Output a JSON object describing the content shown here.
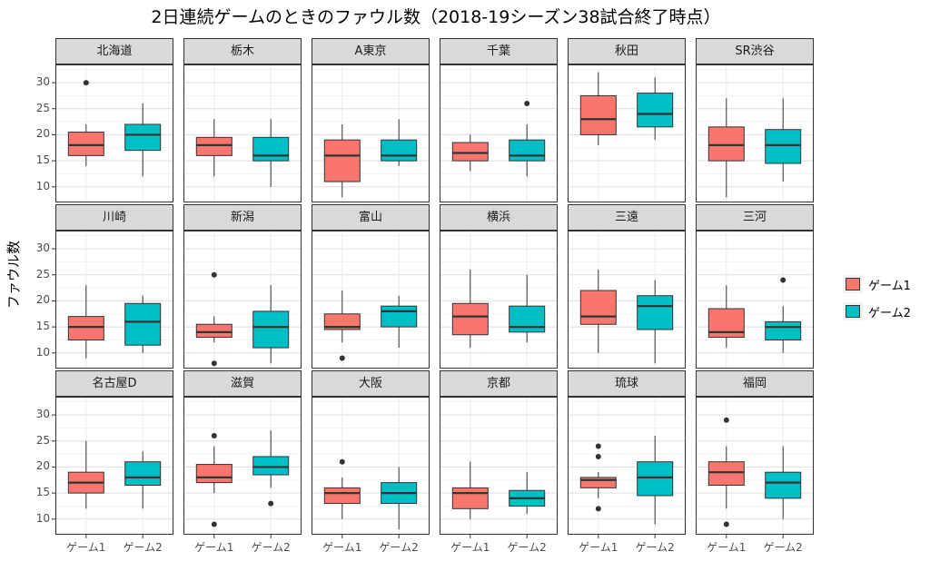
{
  "title": "2日連続ゲームのときのファウル数（2018-19シーズン38試合終了時点）",
  "ylabel": "ファウル数",
  "legend": {
    "items": [
      "ゲーム1",
      "ゲーム2"
    ]
  },
  "chart_data": {
    "type": "boxplot-facets",
    "title": "2日連続ゲームのときのファウル数（2018-19シーズン38試合終了時点）",
    "ylabel": "ファウル数",
    "xlabel": "",
    "categories": [
      "ゲーム1",
      "ゲーム2"
    ],
    "series_colors": {
      "ゲーム1": "#f8766d",
      "ゲーム2": "#00bfc4"
    },
    "ylim": [
      7,
      33.5
    ],
    "yticks": [
      10,
      15,
      20,
      25,
      30
    ],
    "legend_position": "right",
    "grid": true,
    "facets": [
      {
        "name": "北海道",
        "g1": {
          "min": 14,
          "q1": 16,
          "med": 18,
          "q3": 20.5,
          "max": 22,
          "out": [
            30
          ]
        },
        "g2": {
          "min": 12,
          "q1": 17,
          "med": 20,
          "q3": 22,
          "max": 26,
          "out": []
        }
      },
      {
        "name": "栃木",
        "g1": {
          "min": 12,
          "q1": 16,
          "med": 18,
          "q3": 19.5,
          "max": 23,
          "out": []
        },
        "g2": {
          "min": 10,
          "q1": 15,
          "med": 16,
          "q3": 19.5,
          "max": 23,
          "out": []
        }
      },
      {
        "name": "A東京",
        "g1": {
          "min": 8,
          "q1": 11,
          "med": 16,
          "q3": 19,
          "max": 22,
          "out": []
        },
        "g2": {
          "min": 14,
          "q1": 15,
          "med": 16,
          "q3": 19,
          "max": 23,
          "out": []
        }
      },
      {
        "name": "千葉",
        "g1": {
          "min": 13,
          "q1": 15,
          "med": 16.5,
          "q3": 18.5,
          "max": 20,
          "out": []
        },
        "g2": {
          "min": 12,
          "q1": 15,
          "med": 16,
          "q3": 19,
          "max": 22,
          "out": [
            26
          ]
        }
      },
      {
        "name": "秋田",
        "g1": {
          "min": 18,
          "q1": 20,
          "med": 23,
          "q3": 27.5,
          "max": 32,
          "out": []
        },
        "g2": {
          "min": 19,
          "q1": 21.5,
          "med": 24,
          "q3": 28,
          "max": 31,
          "out": []
        }
      },
      {
        "name": "SR渋谷",
        "g1": {
          "min": 8,
          "q1": 15,
          "med": 18,
          "q3": 21.5,
          "max": 27,
          "out": []
        },
        "g2": {
          "min": 11,
          "q1": 14.5,
          "med": 18,
          "q3": 21,
          "max": 27,
          "out": []
        }
      },
      {
        "name": "川崎",
        "g1": {
          "min": 9,
          "q1": 12.5,
          "med": 15,
          "q3": 17,
          "max": 23,
          "out": []
        },
        "g2": {
          "min": 10,
          "q1": 11.5,
          "med": 16,
          "q3": 19.5,
          "max": 21,
          "out": []
        }
      },
      {
        "name": "新潟",
        "g1": {
          "min": 12,
          "q1": 13,
          "med": 14,
          "q3": 15.5,
          "max": 17,
          "out": [
            25,
            8
          ]
        },
        "g2": {
          "min": 8,
          "q1": 11,
          "med": 15,
          "q3": 18,
          "max": 23,
          "out": []
        }
      },
      {
        "name": "富山",
        "g1": {
          "min": 12,
          "q1": 14.5,
          "med": 15,
          "q3": 17.5,
          "max": 22,
          "out": [
            9
          ]
        },
        "g2": {
          "min": 11,
          "q1": 15,
          "med": 18,
          "q3": 19,
          "max": 21,
          "out": []
        }
      },
      {
        "name": "横浜",
        "g1": {
          "min": 11,
          "q1": 13.5,
          "med": 17,
          "q3": 19.5,
          "max": 26,
          "out": []
        },
        "g2": {
          "min": 12,
          "q1": 14,
          "med": 15,
          "q3": 19,
          "max": 25,
          "out": []
        }
      },
      {
        "name": "三遠",
        "g1": {
          "min": 10,
          "q1": 15.5,
          "med": 17,
          "q3": 22,
          "max": 26,
          "out": []
        },
        "g2": {
          "min": 8,
          "q1": 14.5,
          "med": 19,
          "q3": 21,
          "max": 24,
          "out": []
        }
      },
      {
        "name": "三河",
        "g1": {
          "min": 11,
          "q1": 13,
          "med": 14,
          "q3": 18.5,
          "max": 23,
          "out": []
        },
        "g2": {
          "min": 10,
          "q1": 12.5,
          "med": 15,
          "q3": 16,
          "max": 19,
          "out": [
            24
          ]
        }
      },
      {
        "name": "名古屋D",
        "g1": {
          "min": 12,
          "q1": 15,
          "med": 17,
          "q3": 19,
          "max": 25,
          "out": []
        },
        "g2": {
          "min": 12,
          "q1": 16.5,
          "med": 18,
          "q3": 21,
          "max": 23,
          "out": []
        }
      },
      {
        "name": "滋賀",
        "g1": {
          "min": 15,
          "q1": 17,
          "med": 18,
          "q3": 20.5,
          "max": 24,
          "out": [
            26,
            9
          ]
        },
        "g2": {
          "min": 16,
          "q1": 18.5,
          "med": 20,
          "q3": 22,
          "max": 27,
          "out": [
            13
          ]
        }
      },
      {
        "name": "大阪",
        "g1": {
          "min": 10,
          "q1": 13,
          "med": 15,
          "q3": 16,
          "max": 18,
          "out": [
            21
          ]
        },
        "g2": {
          "min": 8,
          "q1": 13,
          "med": 15,
          "q3": 17,
          "max": 20,
          "out": []
        }
      },
      {
        "name": "京都",
        "g1": {
          "min": 10,
          "q1": 12,
          "med": 15,
          "q3": 16,
          "max": 21,
          "out": []
        },
        "g2": {
          "min": 11,
          "q1": 12.5,
          "med": 14,
          "q3": 15.5,
          "max": 19,
          "out": []
        }
      },
      {
        "name": "琉球",
        "g1": {
          "min": 14,
          "q1": 16,
          "med": 17.5,
          "q3": 18,
          "max": 19,
          "out": [
            24,
            22,
            12
          ]
        },
        "g2": {
          "min": 9,
          "q1": 14.5,
          "med": 18,
          "q3": 21,
          "max": 26,
          "out": []
        }
      },
      {
        "name": "福岡",
        "g1": {
          "min": 12,
          "q1": 16.5,
          "med": 19,
          "q3": 21,
          "max": 24,
          "out": [
            29,
            9
          ]
        },
        "g2": {
          "min": 10,
          "q1": 14,
          "med": 17,
          "q3": 19,
          "max": 24,
          "out": []
        }
      }
    ]
  }
}
